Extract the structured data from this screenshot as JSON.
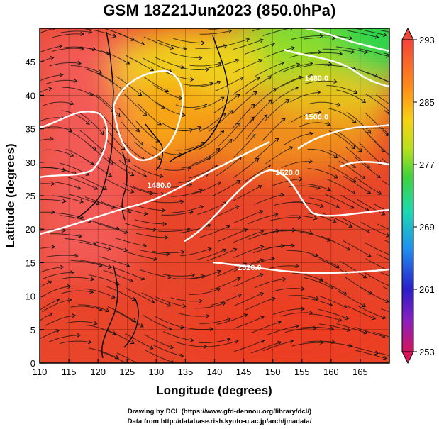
{
  "title": "GSM 18Z21Jun2023 (850.0hPa)",
  "credits": {
    "drawing": "Drawing by DCL (https://www.gfd-dennou.org/library/dcl/)",
    "data": "Data from http://database.rish.kyoto-u.ac.jp/arch/jmadata/"
  },
  "chart_data": {
    "type": "heatmap",
    "title": "GSM 18Z21Jun2023 (850.0hPa)",
    "xlabel": "Longitude (degrees)",
    "ylabel": "Latitude  (degrees)",
    "xlim": [
      110,
      170
    ],
    "ylim": [
      0,
      50
    ],
    "x_ticks": [
      110,
      115,
      120,
      125,
      130,
      135,
      140,
      145,
      150,
      155,
      160,
      165
    ],
    "y_ticks": [
      0,
      5,
      10,
      15,
      20,
      25,
      30,
      35,
      40,
      45
    ],
    "grid": true,
    "colorbar": {
      "placement": "right",
      "min": 253,
      "max": 293,
      "tick_labels": [
        "293",
        "285",
        "277",
        "269",
        "261",
        "253"
      ],
      "colors": [
        "#d4145a",
        "#8a1fbf",
        "#2a1ec9",
        "#1f8ff0",
        "#1dd9b0",
        "#3fd23c",
        "#b8e01e",
        "#f5d315",
        "#ff8a1a",
        "#f2453a"
      ]
    },
    "overlays": [
      "streamlines (wind)",
      "geopotential height contours (white)",
      "coastlines"
    ],
    "contour_labels": [
      {
        "text": "1480.0",
        "lon": 130.5,
        "lat": 26.6
      },
      {
        "text": "1520.0",
        "lon": 146,
        "lat": 14.3
      },
      {
        "text": "1520.0",
        "lon": 152.5,
        "lat": 28.5
      },
      {
        "text": "1500.0",
        "lon": 157.5,
        "lat": 36.8
      },
      {
        "text": "1480.0",
        "lon": 157.5,
        "lat": 42.6
      }
    ],
    "temperature_regions": [
      {
        "lon": 155,
        "lat": 42,
        "kelvin": 277
      },
      {
        "lon": 150,
        "lat": 35,
        "kelvin": 286
      },
      {
        "lon": 130,
        "lat": 45,
        "kelvin": 282
      },
      {
        "lon": 115,
        "lat": 35,
        "kelvin": 290
      },
      {
        "lon": 145,
        "lat": 15,
        "kelvin": 289
      }
    ]
  }
}
